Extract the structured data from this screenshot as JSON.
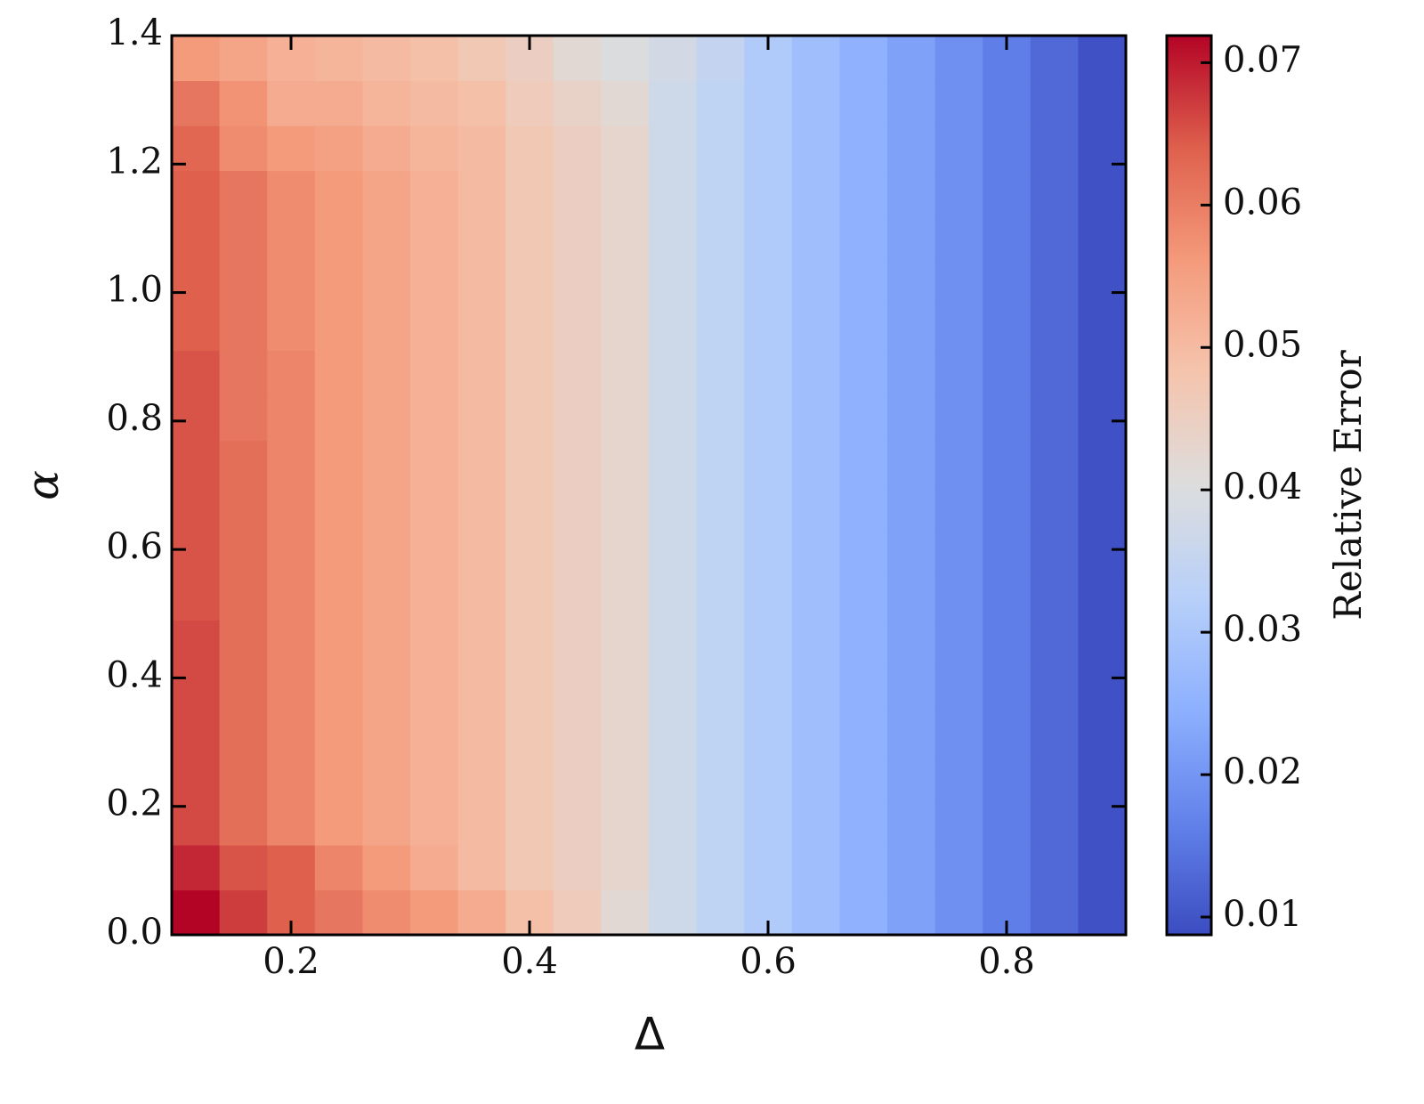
{
  "chart_data": {
    "type": "heatmap",
    "xlabel": "Δ",
    "ylabel": "α",
    "colorbar_label": "Relative Error",
    "colormap": "coolwarm",
    "x": [
      0.12,
      0.16,
      0.2,
      0.24,
      0.28,
      0.32,
      0.36,
      0.4,
      0.44,
      0.48,
      0.52,
      0.56,
      0.6,
      0.64,
      0.68,
      0.72,
      0.76,
      0.8,
      0.84,
      0.88
    ],
    "y": [
      0.035,
      0.105,
      0.175,
      0.245,
      0.315,
      0.385,
      0.455,
      0.525,
      0.595,
      0.665,
      0.735,
      0.805,
      0.875,
      0.945,
      1.015,
      1.085,
      1.155,
      1.225,
      1.295,
      1.365
    ],
    "z": [
      [
        0.0719,
        0.067,
        0.064,
        0.061,
        0.058,
        0.056,
        0.053,
        0.049,
        0.046,
        0.042,
        0.037,
        0.034,
        0.031,
        0.028,
        0.025,
        0.022,
        0.019,
        0.016,
        0.013,
        0.0095
      ],
      [
        0.069,
        0.065,
        0.064,
        0.059,
        0.056,
        0.053,
        0.05,
        0.047,
        0.045,
        0.043,
        0.037,
        0.034,
        0.031,
        0.028,
        0.025,
        0.022,
        0.019,
        0.016,
        0.013,
        0.0095
      ],
      [
        0.066,
        0.062,
        0.059,
        0.056,
        0.054,
        0.052,
        0.05,
        0.047,
        0.045,
        0.043,
        0.037,
        0.034,
        0.031,
        0.028,
        0.025,
        0.022,
        0.019,
        0.016,
        0.013,
        0.0095
      ],
      [
        0.066,
        0.062,
        0.059,
        0.056,
        0.054,
        0.052,
        0.05,
        0.047,
        0.045,
        0.043,
        0.037,
        0.034,
        0.031,
        0.028,
        0.025,
        0.022,
        0.019,
        0.016,
        0.013,
        0.0095
      ],
      [
        0.066,
        0.062,
        0.059,
        0.056,
        0.054,
        0.052,
        0.05,
        0.047,
        0.045,
        0.043,
        0.037,
        0.034,
        0.031,
        0.028,
        0.025,
        0.022,
        0.019,
        0.016,
        0.013,
        0.0095
      ],
      [
        0.066,
        0.062,
        0.059,
        0.056,
        0.054,
        0.052,
        0.05,
        0.047,
        0.045,
        0.043,
        0.037,
        0.034,
        0.031,
        0.028,
        0.025,
        0.022,
        0.019,
        0.016,
        0.013,
        0.0095
      ],
      [
        0.066,
        0.062,
        0.059,
        0.056,
        0.054,
        0.052,
        0.05,
        0.047,
        0.045,
        0.043,
        0.037,
        0.034,
        0.031,
        0.028,
        0.025,
        0.022,
        0.019,
        0.016,
        0.013,
        0.0095
      ],
      [
        0.065,
        0.062,
        0.059,
        0.056,
        0.054,
        0.052,
        0.05,
        0.047,
        0.045,
        0.043,
        0.037,
        0.034,
        0.031,
        0.028,
        0.025,
        0.022,
        0.019,
        0.016,
        0.013,
        0.0095
      ],
      [
        0.065,
        0.062,
        0.059,
        0.056,
        0.054,
        0.052,
        0.05,
        0.047,
        0.045,
        0.043,
        0.037,
        0.034,
        0.031,
        0.028,
        0.025,
        0.022,
        0.019,
        0.016,
        0.013,
        0.0095
      ],
      [
        0.065,
        0.062,
        0.059,
        0.056,
        0.054,
        0.052,
        0.05,
        0.047,
        0.045,
        0.043,
        0.037,
        0.034,
        0.031,
        0.028,
        0.025,
        0.022,
        0.019,
        0.016,
        0.013,
        0.0095
      ],
      [
        0.065,
        0.062,
        0.059,
        0.056,
        0.054,
        0.052,
        0.05,
        0.047,
        0.045,
        0.043,
        0.037,
        0.034,
        0.031,
        0.028,
        0.025,
        0.022,
        0.019,
        0.016,
        0.013,
        0.0095
      ],
      [
        0.065,
        0.061,
        0.059,
        0.056,
        0.054,
        0.052,
        0.05,
        0.047,
        0.045,
        0.043,
        0.037,
        0.034,
        0.031,
        0.028,
        0.025,
        0.022,
        0.019,
        0.016,
        0.013,
        0.0095
      ],
      [
        0.065,
        0.061,
        0.059,
        0.056,
        0.054,
        0.052,
        0.05,
        0.047,
        0.045,
        0.043,
        0.037,
        0.034,
        0.031,
        0.028,
        0.025,
        0.022,
        0.019,
        0.016,
        0.013,
        0.0095
      ],
      [
        0.064,
        0.061,
        0.058,
        0.056,
        0.054,
        0.052,
        0.05,
        0.047,
        0.045,
        0.043,
        0.037,
        0.034,
        0.031,
        0.028,
        0.025,
        0.022,
        0.019,
        0.016,
        0.013,
        0.0095
      ],
      [
        0.064,
        0.061,
        0.058,
        0.056,
        0.054,
        0.052,
        0.05,
        0.047,
        0.045,
        0.043,
        0.037,
        0.034,
        0.031,
        0.028,
        0.025,
        0.022,
        0.019,
        0.016,
        0.013,
        0.0095
      ],
      [
        0.064,
        0.061,
        0.058,
        0.056,
        0.054,
        0.052,
        0.05,
        0.047,
        0.045,
        0.043,
        0.037,
        0.034,
        0.031,
        0.028,
        0.025,
        0.022,
        0.019,
        0.016,
        0.013,
        0.0095
      ],
      [
        0.064,
        0.061,
        0.058,
        0.056,
        0.054,
        0.052,
        0.05,
        0.047,
        0.045,
        0.043,
        0.037,
        0.034,
        0.031,
        0.028,
        0.025,
        0.022,
        0.019,
        0.016,
        0.013,
        0.0095
      ],
      [
        0.063,
        0.058,
        0.056,
        0.055,
        0.053,
        0.051,
        0.05,
        0.047,
        0.045,
        0.043,
        0.037,
        0.034,
        0.031,
        0.028,
        0.025,
        0.022,
        0.019,
        0.016,
        0.013,
        0.0095
      ],
      [
        0.061,
        0.057,
        0.053,
        0.053,
        0.051,
        0.05,
        0.049,
        0.046,
        0.044,
        0.042,
        0.037,
        0.034,
        0.031,
        0.028,
        0.025,
        0.022,
        0.019,
        0.016,
        0.013,
        0.0095
      ],
      [
        0.056,
        0.054,
        0.052,
        0.051,
        0.05,
        0.049,
        0.047,
        0.045,
        0.042,
        0.04,
        0.038,
        0.035,
        0.031,
        0.028,
        0.025,
        0.022,
        0.019,
        0.016,
        0.013,
        0.0095
      ]
    ],
    "xlim": [
      0.1,
      0.9
    ],
    "xticks": [
      0.2,
      0.4,
      0.6,
      0.8
    ],
    "ylim": [
      0,
      1.4
    ],
    "yticks": [
      {
        "value": 0,
        "label": "0.0"
      },
      0.2,
      0.4,
      0.6,
      0.8,
      {
        "value": 1,
        "label": "1.0"
      },
      1.2,
      1.4
    ],
    "zlim": [
      0.00875,
      0.0719
    ],
    "zticks": [
      0.01,
      0.02,
      0.03,
      0.04,
      0.05,
      0.06,
      0.07
    ]
  }
}
